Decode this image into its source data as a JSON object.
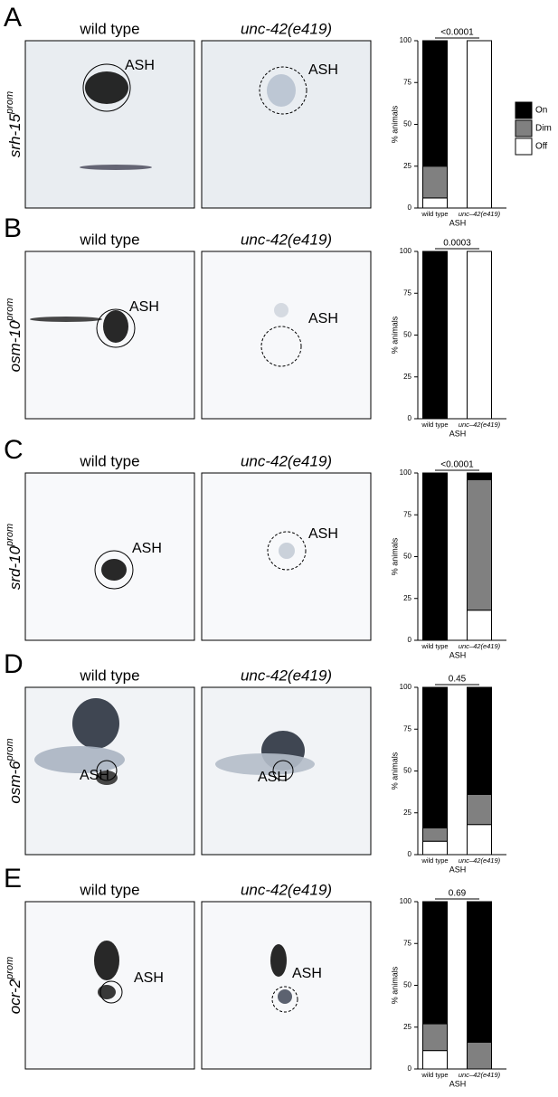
{
  "chart_data": [
    {
      "type": "bar",
      "stacked": true,
      "panel": "A",
      "reporter": "srh-15",
      "reporter_superscript": "prom",
      "image_titles": [
        "wild type",
        "unc-42(e419)"
      ],
      "image_label": "ASH",
      "p_value": "<0.0001",
      "categories": [
        "wild type",
        "unc–42(e419)"
      ],
      "xlabel": "ASH",
      "ylabel": "% animals",
      "ylim": [
        0,
        100
      ],
      "yticks": [
        0,
        25,
        50,
        75,
        100
      ],
      "legend": "right",
      "series": [
        {
          "name": "On",
          "color": "#000000",
          "values": [
            75,
            0
          ]
        },
        {
          "name": "Dim",
          "color": "#808080",
          "values": [
            19,
            0
          ]
        },
        {
          "name": "Off",
          "color": "#ffffff",
          "values": [
            6,
            100
          ]
        }
      ]
    },
    {
      "type": "bar",
      "stacked": true,
      "panel": "B",
      "reporter": "osm-10",
      "reporter_superscript": "prom",
      "image_titles": [
        "wild type",
        "unc-42(e419)"
      ],
      "image_label": "ASH",
      "p_value": "0.0003",
      "categories": [
        "wild type",
        "unc–42(e419)"
      ],
      "xlabel": "ASH",
      "ylabel": "% animals",
      "ylim": [
        0,
        100
      ],
      "yticks": [
        0,
        25,
        50,
        75,
        100
      ],
      "series": [
        {
          "name": "On",
          "color": "#000000",
          "values": [
            100,
            0
          ]
        },
        {
          "name": "Dim",
          "color": "#808080",
          "values": [
            0,
            0
          ]
        },
        {
          "name": "Off",
          "color": "#ffffff",
          "values": [
            0,
            100
          ]
        }
      ]
    },
    {
      "type": "bar",
      "stacked": true,
      "panel": "C",
      "reporter": "srd-10",
      "reporter_superscript": "prom",
      "image_titles": [
        "wild type",
        "unc-42(e419)"
      ],
      "image_label": "ASH",
      "p_value": "<0.0001",
      "categories": [
        "wild type",
        "unc–42(e419)"
      ],
      "xlabel": "ASH",
      "ylabel": "% animals",
      "ylim": [
        0,
        100
      ],
      "yticks": [
        0,
        25,
        50,
        75,
        100
      ],
      "series": [
        {
          "name": "On",
          "color": "#000000",
          "values": [
            100,
            4
          ]
        },
        {
          "name": "Dim",
          "color": "#808080",
          "values": [
            0,
            78
          ]
        },
        {
          "name": "Off",
          "color": "#ffffff",
          "values": [
            0,
            18
          ]
        }
      ]
    },
    {
      "type": "bar",
      "stacked": true,
      "panel": "D",
      "reporter": "osm-6",
      "reporter_superscript": "prom",
      "image_titles": [
        "wild type",
        "unc-42(e419)"
      ],
      "image_label": "ASH",
      "p_value": "0.45",
      "categories": [
        "wild type",
        "unc–42(e419)"
      ],
      "xlabel": "ASH",
      "ylabel": "% animals",
      "ylim": [
        0,
        100
      ],
      "yticks": [
        0,
        25,
        50,
        75,
        100
      ],
      "series": [
        {
          "name": "On",
          "color": "#000000",
          "values": [
            84,
            64
          ]
        },
        {
          "name": "Dim",
          "color": "#808080",
          "values": [
            8,
            18
          ]
        },
        {
          "name": "Off",
          "color": "#ffffff",
          "values": [
            8,
            18
          ]
        }
      ]
    },
    {
      "type": "bar",
      "stacked": true,
      "panel": "E",
      "reporter": "ocr-2",
      "reporter_superscript": "prom",
      "image_titles": [
        "wild type",
        "unc-42(e419)"
      ],
      "image_label": "ASH",
      "p_value": "0.69",
      "categories": [
        "wild type",
        "unc–42(e419)"
      ],
      "xlabel": "ASH",
      "ylabel": "% animals",
      "ylim": [
        0,
        100
      ],
      "yticks": [
        0,
        25,
        50,
        75,
        100
      ],
      "series": [
        {
          "name": "On",
          "color": "#000000",
          "values": [
            73,
            84
          ]
        },
        {
          "name": "Dim",
          "color": "#808080",
          "values": [
            16,
            16
          ]
        },
        {
          "name": "Off",
          "color": "#ffffff",
          "values": [
            11,
            0
          ]
        }
      ]
    }
  ]
}
